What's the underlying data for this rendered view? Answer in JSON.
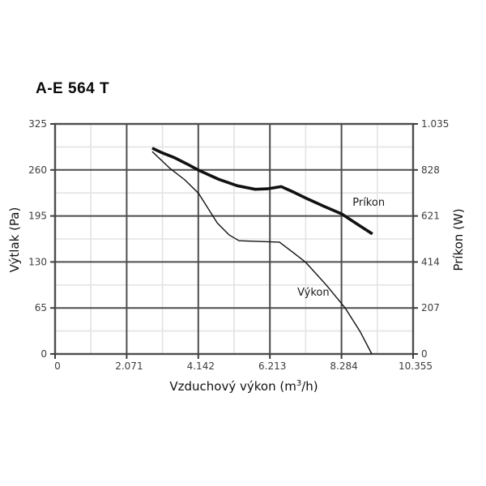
{
  "title": "A-E 564 T",
  "chart_data": {
    "type": "line",
    "title": "A-E 564 T",
    "x_axis": {
      "label_prefix": "Vzduchový výkon (m",
      "label_sup": "3",
      "label_suffix": "/h)",
      "ticks": [
        "0",
        "2.071",
        "4.142",
        "6.213",
        "8.284",
        "10.355"
      ],
      "tick_values": [
        0,
        2.071,
        4.142,
        6.213,
        8.284,
        10.355
      ],
      "range": [
        0,
        10.355
      ]
    },
    "y_left": {
      "label": "Výtlak (Pa)",
      "ticks": [
        "0",
        "65",
        "130",
        "195",
        "260",
        "325"
      ],
      "tick_values": [
        0,
        65,
        130,
        195,
        260,
        325
      ],
      "range": [
        0,
        325
      ]
    },
    "y_right": {
      "label": "Príkon (W)",
      "ticks": [
        "0",
        "207",
        "414",
        "621",
        "828",
        "1.035"
      ],
      "tick_values": [
        0,
        207,
        414,
        621,
        828,
        1035
      ],
      "range": [
        0,
        1035
      ]
    },
    "grid": {
      "major": true,
      "minor": true,
      "legend": "inline-curve-labels"
    },
    "series": [
      {
        "key": "prikon",
        "name": "Príkon",
        "axis": "right",
        "stroke_width": 3.6,
        "label_pos": [
          9.07,
          682
        ],
        "points": [
          [
            2.81,
            926
          ],
          [
            3.1,
            905
          ],
          [
            3.44,
            884
          ],
          [
            3.8,
            856
          ],
          [
            4.15,
            827
          ],
          [
            4.73,
            786
          ],
          [
            5.27,
            757
          ],
          [
            5.79,
            741
          ],
          [
            6.14,
            743
          ],
          [
            6.54,
            753
          ],
          [
            6.9,
            728
          ],
          [
            7.31,
            697
          ],
          [
            7.8,
            663
          ],
          [
            8.29,
            630
          ],
          [
            8.78,
            580
          ],
          [
            9.18,
            540
          ]
        ]
      },
      {
        "key": "vykon",
        "name": "Výkon",
        "axis": "left",
        "stroke_width": 1.4,
        "label_pos": [
          7.47,
          87
        ],
        "points": [
          [
            2.81,
            286
          ],
          [
            3.33,
            262
          ],
          [
            3.75,
            246
          ],
          [
            4.15,
            227
          ],
          [
            4.69,
            185
          ],
          [
            5.04,
            168
          ],
          [
            5.32,
            160
          ],
          [
            5.9,
            159
          ],
          [
            6.49,
            158
          ],
          [
            6.84,
            145
          ],
          [
            7.24,
            130
          ],
          [
            7.85,
            97
          ],
          [
            8.39,
            65
          ],
          [
            8.83,
            31
          ],
          [
            9.16,
            0
          ]
        ]
      }
    ],
    "colors": {
      "curve": "#111111",
      "grid_major": "#4d4d4d",
      "grid_minor": "#e3e3e3",
      "axis_border": "#4d4d4d",
      "tick_mark": "#3d3d3d",
      "tick_text": "#3d3d3d",
      "background": "#ffffff"
    }
  }
}
